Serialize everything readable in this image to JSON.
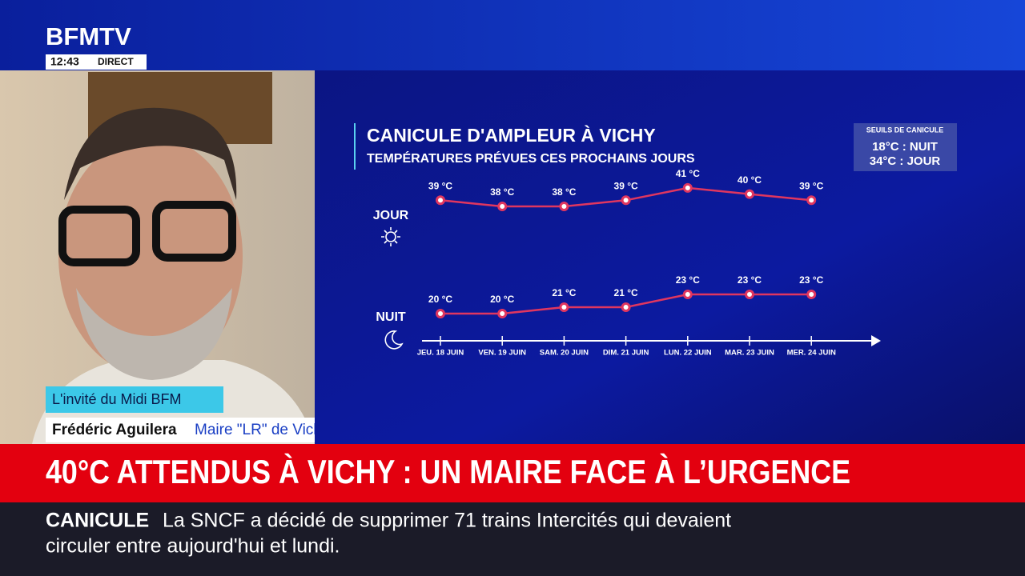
{
  "broadcast": {
    "channel": "BFMTV",
    "time": "12:43",
    "live": "DIRECT",
    "show": "L'invité du Midi BFM",
    "guest_name": "Frédéric Aguilera",
    "guest_role": "Maire \"LR\" de Vichy (Allier)",
    "headline": "40°C ATTENDUS À VICHY : UN MAIRE FACE À L’URGENCE",
    "ticker_topic": "CANICULE",
    "ticker_line1": "La SNCF a décidé de supprimer 71 trains Intercités qui devaient",
    "ticker_line2": "circuler entre aujourd'hui et lundi."
  },
  "thresholds": {
    "title": "SEUILS DE CANICULE",
    "night": "18°C : NUIT",
    "day": "34°C : JOUR"
  },
  "chart_data": {
    "type": "line",
    "title": "CANICULE D'AMPLEUR À VICHY",
    "subtitle": "TEMPÉRATURES PRÉVUES CES PROCHAINS JOURS",
    "categories": [
      "JEU. 18 JUIN",
      "VEN. 19 JUIN",
      "SAM. 20 JUIN",
      "DIM. 21 JUIN",
      "LUN. 22 JUIN",
      "MAR. 23 JUIN",
      "MER. 24 JUIN"
    ],
    "series": [
      {
        "name": "JOUR",
        "color": "#e0365f",
        "values": [
          39,
          38,
          38,
          39,
          41,
          40,
          39
        ],
        "value_labels": [
          "39 °C",
          "38 °C",
          "38 °C",
          "39 °C",
          "41 °C",
          "40 °C",
          "39 °C"
        ]
      },
      {
        "name": "NUIT",
        "color": "#e0365f",
        "values": [
          20,
          20,
          21,
          21,
          23,
          23,
          23
        ],
        "value_labels": [
          "20 °C",
          "20 °C",
          "21 °C",
          "21 °C",
          "23 °C",
          "23 °C",
          "23 °C"
        ]
      }
    ]
  }
}
